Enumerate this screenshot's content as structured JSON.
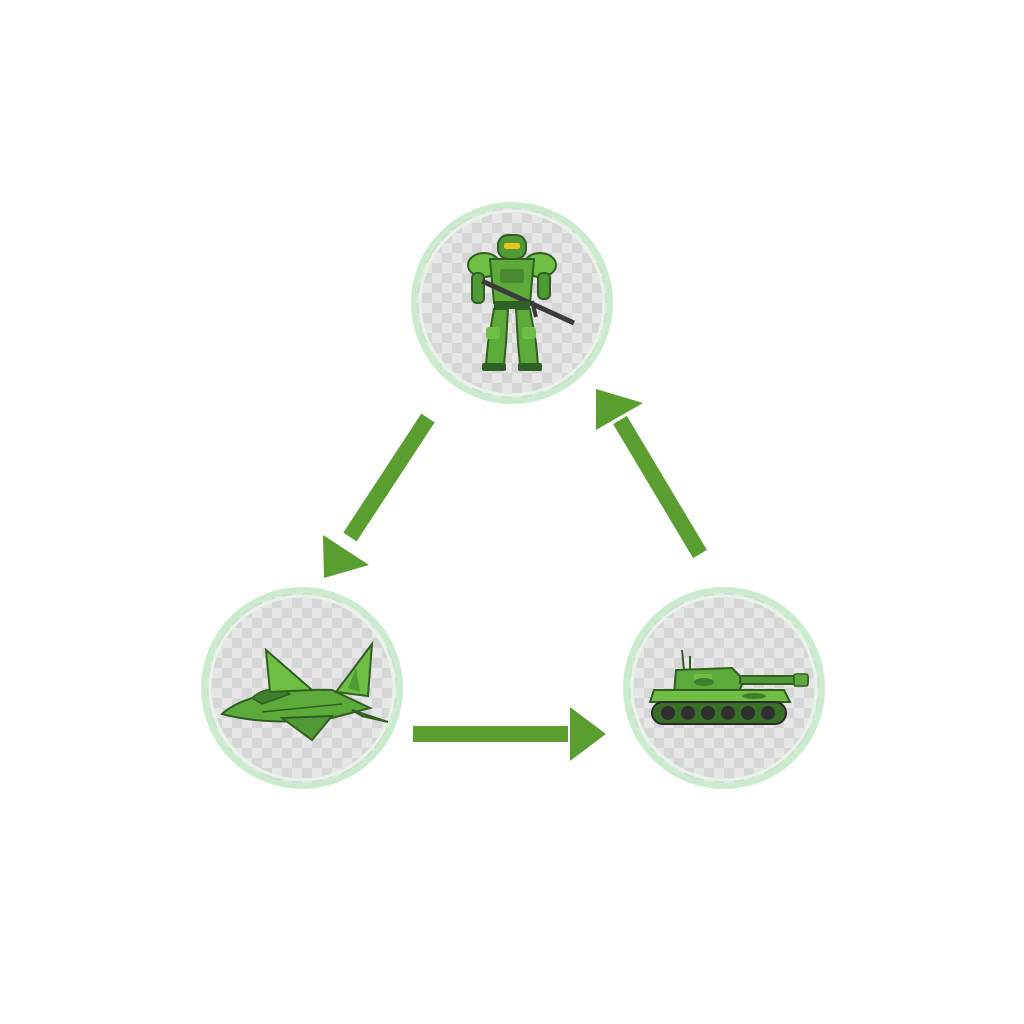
{
  "diagram": {
    "type": "cycle",
    "colors": {
      "arrow": "#5a9e2f",
      "badge_ring": "#c9eccd",
      "badge_fill": "#e6e6e6",
      "checker": "#d4d4d4",
      "unit_light": "#6fbf45",
      "unit_mid": "#4f9a34",
      "unit_dark": "#2f5f22",
      "visor": "#e8c51e",
      "rifle": "#3b3b3b"
    },
    "nodes": [
      {
        "id": "infantry",
        "icon": "armored-soldier-icon"
      },
      {
        "id": "aircraft",
        "icon": "jet-fighter-icon"
      },
      {
        "id": "tank",
        "icon": "battle-tank-icon"
      }
    ],
    "edges": [
      {
        "from": "infantry",
        "to": "aircraft"
      },
      {
        "from": "aircraft",
        "to": "tank"
      },
      {
        "from": "tank",
        "to": "infantry"
      }
    ]
  }
}
